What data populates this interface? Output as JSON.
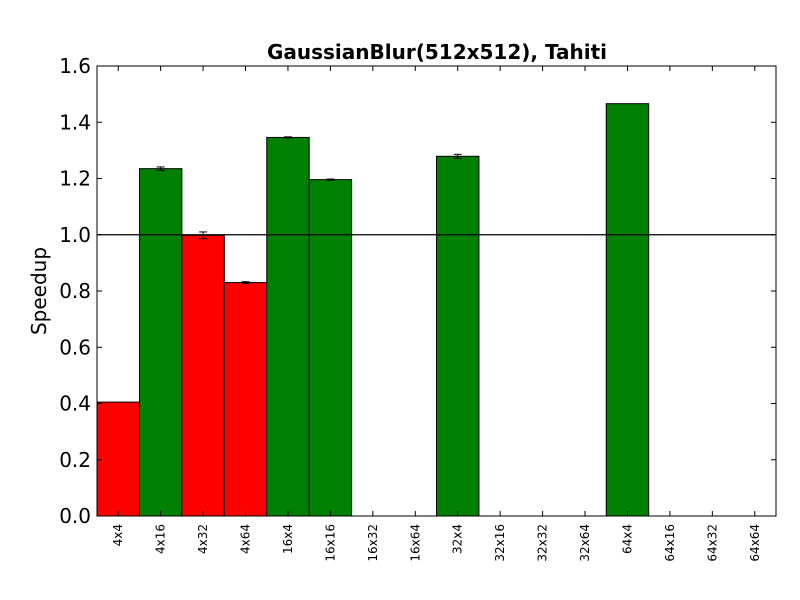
{
  "chart_data": {
    "type": "bar",
    "title": "GaussianBlur(512x512), Tahiti",
    "xlabel": "",
    "ylabel": "Speedup",
    "ylim": [
      0.0,
      1.6
    ],
    "yticks": [
      "0.0",
      "0.2",
      "0.4",
      "0.6",
      "0.8",
      "1.0",
      "1.2",
      "1.4",
      "1.6"
    ],
    "ytick_values": [
      0.0,
      0.2,
      0.4,
      0.6,
      0.8,
      1.0,
      1.2,
      1.4,
      1.6
    ],
    "baseline": 1.0,
    "categories": [
      "4x4",
      "4x16",
      "4x32",
      "4x64",
      "16x4",
      "16x16",
      "16x32",
      "16x64",
      "32x4",
      "32x16",
      "32x32",
      "32x64",
      "64x4",
      "64x16",
      "64x32",
      "64x64"
    ],
    "values": [
      0.405,
      1.235,
      0.998,
      0.83,
      1.346,
      1.196,
      null,
      null,
      1.279,
      null,
      null,
      null,
      1.466,
      null,
      null,
      null
    ],
    "errors": [
      0.0,
      0.006,
      0.012,
      0.003,
      0.002,
      0.002,
      null,
      null,
      0.007,
      null,
      null,
      null,
      0.0,
      null,
      null,
      null
    ],
    "colors": {
      "above_baseline": "#008000",
      "below_baseline": "#ff0000",
      "edge": "#000000"
    }
  }
}
